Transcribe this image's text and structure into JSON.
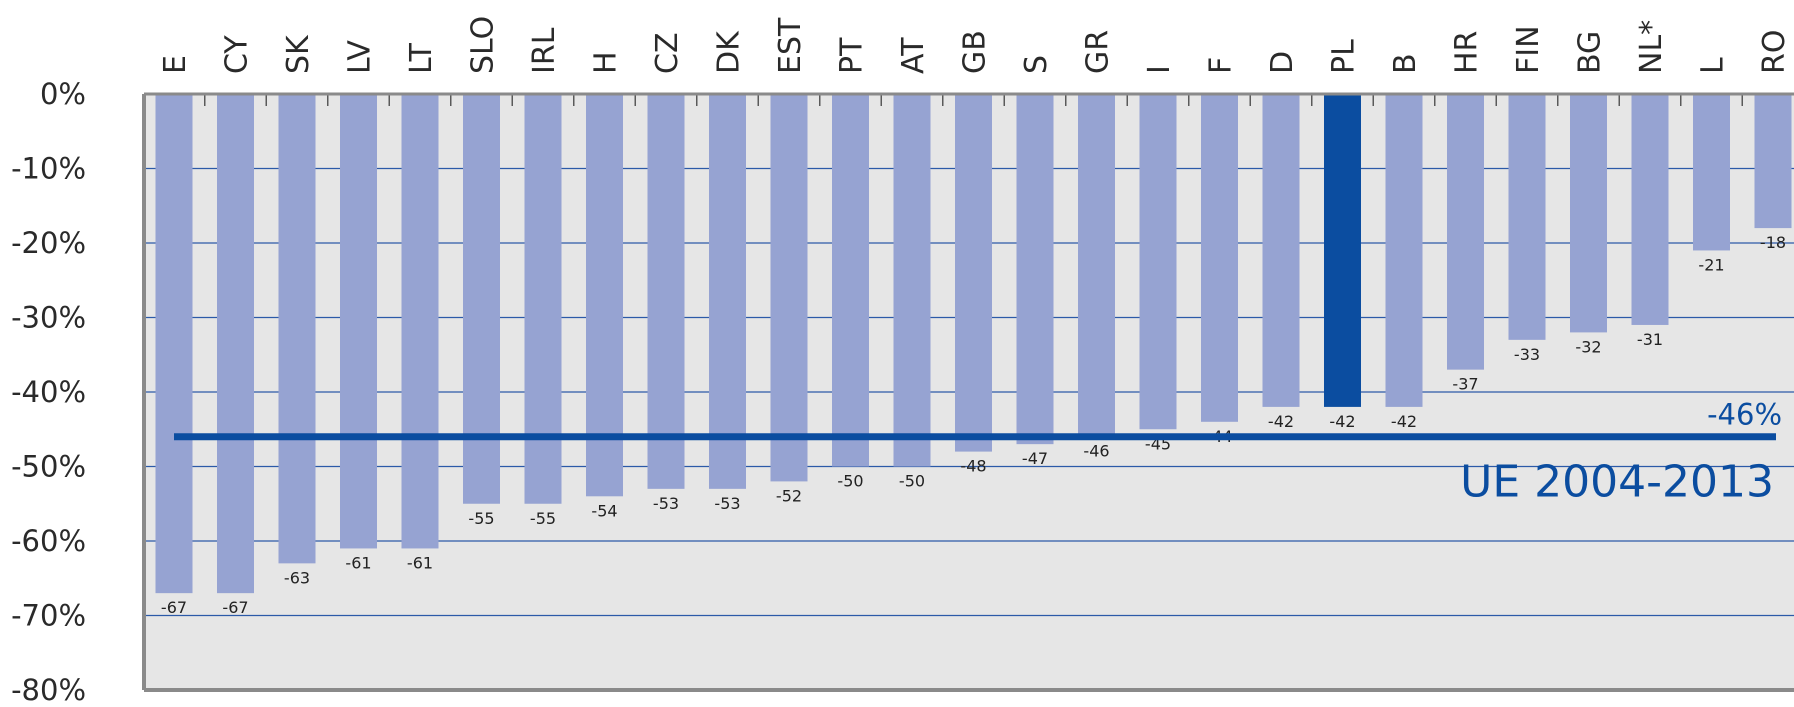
{
  "chart_data": {
    "type": "bar",
    "categories": [
      "E",
      "CY",
      "SK",
      "LV",
      "LT",
      "SLO",
      "IRL",
      "H",
      "CZ",
      "DK",
      "EST",
      "PT",
      "AT",
      "GB",
      "S",
      "GR",
      "I",
      "F",
      "D",
      "PL",
      "B",
      "HR",
      "FIN",
      "BG",
      "NL*",
      "L",
      "RO"
    ],
    "values": [
      -67,
      -67,
      -63,
      -61,
      -61,
      -55,
      -55,
      -54,
      -53,
      -53,
      -52,
      -50,
      -50,
      -48,
      -47,
      -46,
      -45,
      -44,
      -42,
      -42,
      -42,
      -37,
      -33,
      -32,
      -31,
      -21,
      -18
    ],
    "data_labels": [
      "-67",
      "-67",
      "-63",
      "-61",
      "-61",
      "-55",
      "-55",
      "-54",
      "-53",
      "-53",
      "-52",
      "-50",
      "-50",
      "-48",
      "-47",
      "-46",
      "-45",
      "-44",
      "-42",
      "-42",
      "-42",
      "-37",
      "-33",
      "-32",
      "-31",
      "-21",
      "-18"
    ],
    "highlight_category": "PL",
    "ylim": [
      -80,
      0
    ],
    "yticks": [
      0,
      -10,
      -20,
      -30,
      -40,
      -50,
      -60,
      -70,
      -80
    ],
    "ytick_labels": [
      "0%",
      "-10%",
      "-20%",
      "-30%",
      "-40%",
      "-50%",
      "-60%",
      "-70%",
      "-80%"
    ],
    "grid": true,
    "reference_line": {
      "value": -46,
      "value_label": "-46%",
      "label": "UE 2004-2013"
    },
    "colors": {
      "bar": "#96a3d2",
      "highlight_bar": "#0b4da0",
      "reference_line": "#0b4da0",
      "grid": "#2c5aa8",
      "plot_background": "#e6e6e6",
      "axis": "#8a8a8a"
    }
  }
}
